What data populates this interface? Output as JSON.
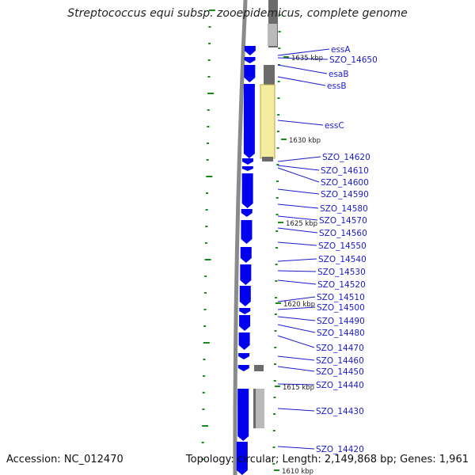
{
  "title": "Streptococcus equi subsp. zooepidemicus, complete genome",
  "footer": {
    "accession": "Accession: NC_012470",
    "summary": "Topology: circular; Length: 2,149,868 bp; Genes: 1,961"
  },
  "colors": {
    "cds": "#0000ee",
    "highlight": "#f4eda0",
    "gray_dark": "#6b6b6b",
    "gray_light": "#b9b9b9",
    "backbone": "#8a8a8a",
    "tick": "#1a8a1a",
    "label": "#1a1acc"
  },
  "ticks": [
    "1635 kbp",
    "1630 kbp",
    "1625 kbp",
    "1620 kbp",
    "1615 kbp",
    "1610 kbp"
  ],
  "genes": [
    "essA",
    "SZO_14650",
    "esaB",
    "essB",
    "essC",
    "SZO_14620",
    "SZO_14610",
    "SZO_14600",
    "SZO_14590",
    "SZO_14580",
    "SZO_14570",
    "SZO_14560",
    "SZO_14550",
    "SZO_14540",
    "SZO_14530",
    "SZO_14520",
    "SZO_14510",
    "SZO_14500",
    "SZO_14490",
    "SZO_14480",
    "SZO_14470",
    "SZO_14460",
    "SZO_14450",
    "SZO_14440",
    "SZO_14430",
    "SZO_14420"
  ]
}
